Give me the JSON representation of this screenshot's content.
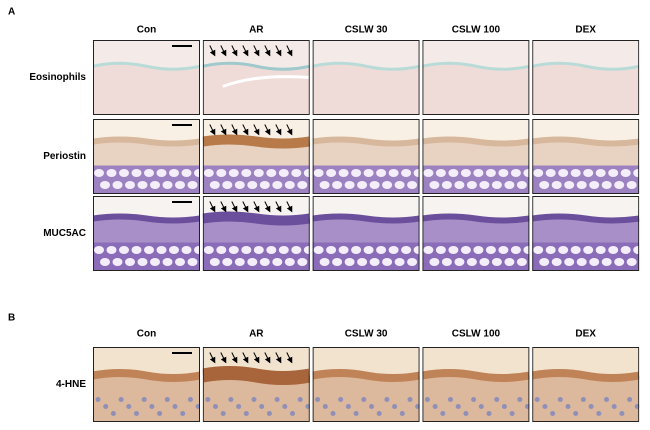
{
  "panel_a": {
    "label": "A",
    "columns": [
      "Con",
      "AR",
      "CSLW 30",
      "CSLW 100",
      "DEX"
    ],
    "rows": [
      "Eosinophils",
      "Periostin",
      "MUC5AC"
    ]
  },
  "panel_b": {
    "label": "B",
    "columns": [
      "Con",
      "AR",
      "CSLW 30",
      "CSLW 100",
      "DEX"
    ],
    "rows": [
      "4-HNE"
    ]
  }
}
